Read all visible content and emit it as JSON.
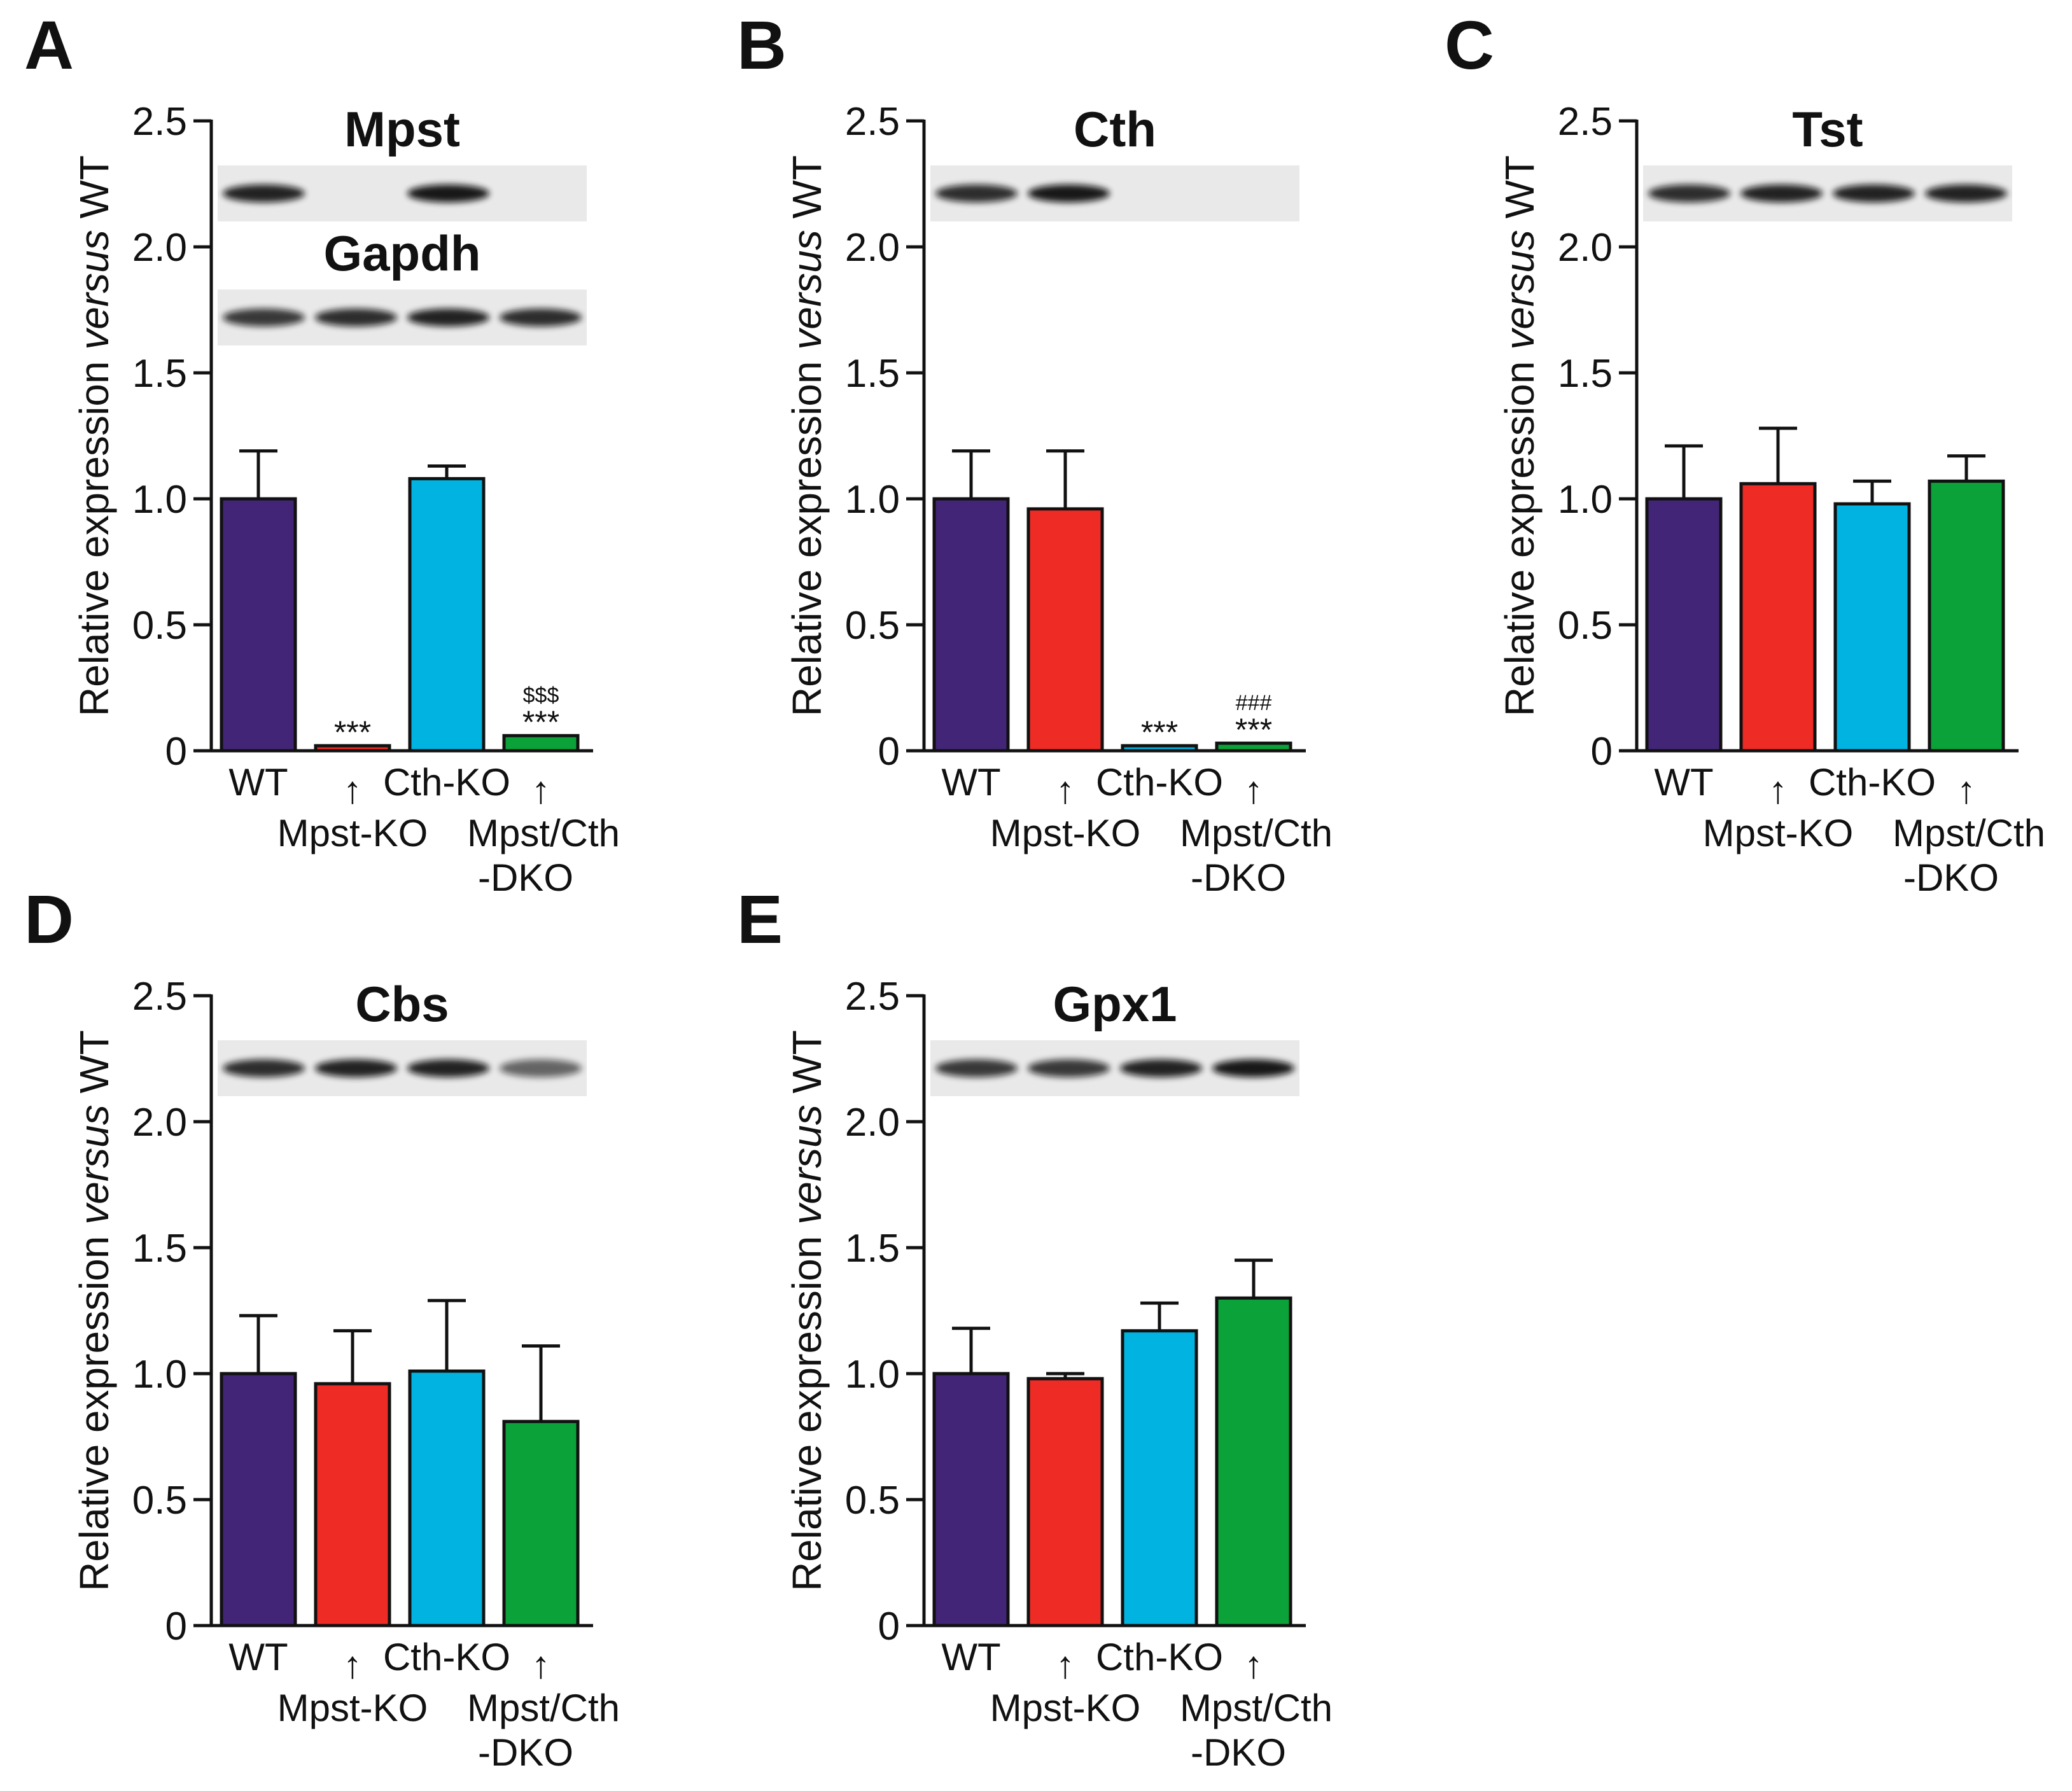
{
  "figure": {
    "y_axis_label": {
      "pre": "Relative expression ",
      "italic": "versus",
      "post": " WT"
    },
    "categories": [
      "WT",
      "Mpst-KO",
      "Cth-KO",
      "Mpst/Cth",
      "-DKO"
    ],
    "x_labels": {
      "wt": "WT",
      "mpst": "Mpst-KO",
      "cth": "Cth-KO",
      "dko_line1": "Mpst/Cth",
      "dko_line2": "-DKO",
      "arrow": "↑"
    },
    "colors": {
      "WT": "#432577",
      "Mpst-KO": "#ee2b24",
      "Cth-KO": "#00b3e0",
      "Mpst/Cth-DKO": "#0ba339"
    }
  },
  "chart_data": [
    {
      "panel": "A",
      "type": "bar",
      "title": "Mpst",
      "blot_labels": [
        "Mpst",
        "Gapdh"
      ],
      "categories": [
        "WT",
        "Mpst-KO",
        "Cth-KO",
        "Mpst/Cth-DKO"
      ],
      "values": [
        1.0,
        0.02,
        1.08,
        0.06
      ],
      "errors": [
        0.19,
        0.0,
        0.05,
        0.0
      ],
      "significance": [
        [],
        [
          "***"
        ],
        [],
        [
          "***",
          "$$$"
        ]
      ],
      "ylim": [
        0,
        2.5
      ],
      "yticks": [
        "0",
        "0.5",
        "1.0",
        "1.5",
        "2.0",
        "2.5"
      ],
      "blot_bands": [
        [
          0.9,
          0.0,
          0.95,
          0.0
        ],
        [
          0.8,
          0.85,
          0.9,
          0.85
        ]
      ]
    },
    {
      "panel": "B",
      "type": "bar",
      "title": "Cth",
      "blot_labels": [
        "Cth"
      ],
      "categories": [
        "WT",
        "Mpst-KO",
        "Cth-KO",
        "Mpst/Cth-DKO"
      ],
      "values": [
        1.0,
        0.96,
        0.02,
        0.03
      ],
      "errors": [
        0.19,
        0.23,
        0.0,
        0.0
      ],
      "significance": [
        [],
        [],
        [
          "***"
        ],
        [
          "***",
          "###"
        ]
      ],
      "ylim": [
        0,
        2.5
      ],
      "yticks": [
        "0",
        "0.5",
        "1.0",
        "1.5",
        "2.0",
        "2.5"
      ],
      "blot_bands": [
        [
          0.85,
          0.95,
          0.0,
          0.0
        ]
      ]
    },
    {
      "panel": "C",
      "type": "bar",
      "title": "Tst",
      "blot_labels": [
        "Tst"
      ],
      "categories": [
        "WT",
        "Mpst-KO",
        "Cth-KO",
        "Mpst/Cth-DKO"
      ],
      "values": [
        1.0,
        1.06,
        0.98,
        1.07
      ],
      "errors": [
        0.21,
        0.22,
        0.09,
        0.1
      ],
      "significance": [
        [],
        [],
        [],
        []
      ],
      "ylim": [
        0,
        2.5
      ],
      "yticks": [
        "0",
        "0.5",
        "1.0",
        "1.5",
        "2.0",
        "2.5"
      ],
      "blot_bands": [
        [
          0.85,
          0.9,
          0.9,
          0.9
        ]
      ]
    },
    {
      "panel": "D",
      "type": "bar",
      "title": "Cbs",
      "blot_labels": [
        "Cbs"
      ],
      "categories": [
        "WT",
        "Mpst-KO",
        "Cth-KO",
        "Mpst/Cth-DKO"
      ],
      "values": [
        1.0,
        0.96,
        1.01,
        0.81
      ],
      "errors": [
        0.23,
        0.21,
        0.28,
        0.3
      ],
      "significance": [
        [],
        [],
        [],
        []
      ],
      "ylim": [
        0,
        2.5
      ],
      "yticks": [
        "0",
        "0.5",
        "1.0",
        "1.5",
        "2.0",
        "2.5"
      ],
      "blot_bands": [
        [
          0.85,
          0.9,
          0.9,
          0.6
        ]
      ]
    },
    {
      "panel": "E",
      "type": "bar",
      "title": "Gpx1",
      "blot_labels": [
        "Gpx1"
      ],
      "categories": [
        "WT",
        "Mpst-KO",
        "Cth-KO",
        "Mpst/Cth-DKO"
      ],
      "values": [
        1.0,
        0.98,
        1.17,
        1.3
      ],
      "errors": [
        0.18,
        0.02,
        0.11,
        0.15
      ],
      "significance": [
        [],
        [],
        [],
        []
      ],
      "ylim": [
        0,
        2.5
      ],
      "yticks": [
        "0",
        "0.5",
        "1.0",
        "1.5",
        "2.0",
        "2.5"
      ],
      "blot_bands": [
        [
          0.8,
          0.8,
          0.9,
          0.95
        ]
      ]
    }
  ]
}
